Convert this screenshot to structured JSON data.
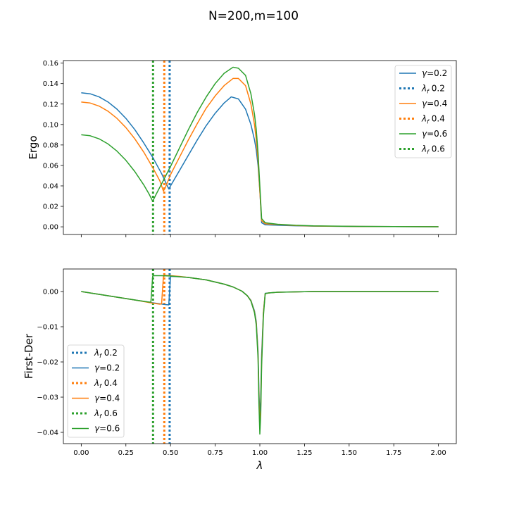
{
  "figure": {
    "title": "N=200,m=100"
  },
  "chart_data": [
    {
      "id": "ergo",
      "type": "line",
      "title": "",
      "xlabel": "",
      "ylabel": "Ergo",
      "xlim": [
        -0.1,
        2.1
      ],
      "ylim": [
        -0.0075,
        0.1625
      ],
      "xticks": [
        0.0,
        0.25,
        0.5,
        0.75,
        1.0,
        1.25,
        1.5,
        1.75,
        2.0
      ],
      "xtick_labels": [],
      "yticks": [
        0.0,
        0.02,
        0.04,
        0.06,
        0.08,
        0.1,
        0.12,
        0.14,
        0.16
      ],
      "ytick_labels": [
        "0.00",
        "0.02",
        "0.04",
        "0.06",
        "0.08",
        "0.10",
        "0.12",
        "0.14",
        "0.16"
      ],
      "grid": false,
      "legend_position": "upper right",
      "legend_order": [
        0,
        3,
        1,
        4,
        2,
        5
      ],
      "series": [
        {
          "name": "γ=0.2",
          "legend_main": "γ",
          "legend_sub": "",
          "legend_rest": "=0.2",
          "color": "#1f77b4",
          "style": "solid",
          "x": [
            0,
            0.05,
            0.1,
            0.15,
            0.2,
            0.25,
            0.3,
            0.35,
            0.4,
            0.45,
            0.49,
            0.5,
            0.55,
            0.6,
            0.65,
            0.7,
            0.75,
            0.8,
            0.84,
            0.88,
            0.92,
            0.95,
            0.97,
            0.98,
            0.99,
            1.0,
            1.01,
            1.03,
            1.1,
            1.2,
            1.3,
            1.5,
            1.75,
            2.0
          ],
          "y": [
            0.131,
            0.13,
            0.127,
            0.122,
            0.115,
            0.106,
            0.095,
            0.082,
            0.068,
            0.052,
            0.037,
            0.04,
            0.055,
            0.07,
            0.085,
            0.099,
            0.111,
            0.121,
            0.127,
            0.125,
            0.115,
            0.1,
            0.085,
            0.075,
            0.06,
            0.035,
            0.004,
            0.002,
            0.0015,
            0.001,
            0.0007,
            0.0004,
            0.0002,
            0.0001
          ]
        },
        {
          "name": "γ=0.4",
          "legend_main": "γ",
          "legend_sub": "",
          "legend_rest": "=0.4",
          "color": "#ff7f0e",
          "style": "solid",
          "x": [
            0,
            0.05,
            0.1,
            0.15,
            0.2,
            0.25,
            0.3,
            0.35,
            0.4,
            0.44,
            0.46,
            0.47,
            0.5,
            0.55,
            0.6,
            0.65,
            0.7,
            0.75,
            0.8,
            0.85,
            0.88,
            0.92,
            0.95,
            0.97,
            0.98,
            0.99,
            1.0,
            1.01,
            1.03,
            1.1,
            1.2,
            1.3,
            1.5,
            1.75,
            2.0
          ],
          "y": [
            0.122,
            0.121,
            0.118,
            0.113,
            0.106,
            0.097,
            0.086,
            0.073,
            0.058,
            0.045,
            0.035,
            0.038,
            0.051,
            0.068,
            0.085,
            0.101,
            0.116,
            0.128,
            0.138,
            0.145,
            0.145,
            0.138,
            0.12,
            0.1,
            0.085,
            0.065,
            0.035,
            0.006,
            0.003,
            0.0022,
            0.0013,
            0.0008,
            0.0004,
            0.0002,
            0.0001
          ]
        },
        {
          "name": "γ=0.6",
          "legend_main": "γ",
          "legend_sub": "",
          "legend_rest": "=0.6",
          "color": "#2ca02c",
          "style": "solid",
          "x": [
            0,
            0.05,
            0.1,
            0.15,
            0.2,
            0.25,
            0.3,
            0.35,
            0.38,
            0.4,
            0.42,
            0.45,
            0.5,
            0.55,
            0.6,
            0.65,
            0.7,
            0.75,
            0.8,
            0.85,
            0.88,
            0.92,
            0.95,
            0.97,
            0.98,
            0.99,
            1.0,
            1.01,
            1.03,
            1.1,
            1.2,
            1.3,
            1.5,
            1.75,
            2.0
          ],
          "y": [
            0.09,
            0.089,
            0.086,
            0.081,
            0.074,
            0.065,
            0.054,
            0.041,
            0.032,
            0.025,
            0.032,
            0.042,
            0.059,
            0.077,
            0.095,
            0.112,
            0.127,
            0.14,
            0.15,
            0.156,
            0.155,
            0.148,
            0.13,
            0.11,
            0.095,
            0.072,
            0.04,
            0.008,
            0.004,
            0.0025,
            0.0015,
            0.0009,
            0.0005,
            0.0002,
            0.0001
          ]
        },
        {
          "name": "λf 0.2",
          "legend_main": "λ",
          "legend_sub": "f",
          "legend_rest": " 0.2",
          "color": "#1f77b4",
          "style": "dotted",
          "vline": 0.495
        },
        {
          "name": "λf 0.4",
          "legend_main": "λ",
          "legend_sub": "f",
          "legend_rest": " 0.4",
          "color": "#ff7f0e",
          "style": "dotted",
          "vline": 0.465
        },
        {
          "name": "λf 0.6",
          "legend_main": "λ",
          "legend_sub": "f",
          "legend_rest": " 0.6",
          "color": "#2ca02c",
          "style": "dotted",
          "vline": 0.402
        }
      ]
    },
    {
      "id": "firstder",
      "type": "line",
      "title": "",
      "xlabel": "λ",
      "ylabel": "First-Der",
      "xlim": [
        -0.1,
        2.1
      ],
      "ylim": [
        -0.0432,
        0.0064
      ],
      "xticks": [
        0.0,
        0.25,
        0.5,
        0.75,
        1.0,
        1.25,
        1.5,
        1.75,
        2.0
      ],
      "xtick_labels": [
        "0.00",
        "0.25",
        "0.50",
        "0.75",
        "1.00",
        "1.25",
        "1.50",
        "1.75",
        "2.00"
      ],
      "yticks": [
        0.0,
        -0.01,
        -0.02,
        -0.03,
        -0.04
      ],
      "ytick_labels": [
        "0.00",
        "−0.01",
        "−0.02",
        "−0.03",
        "−0.04"
      ],
      "grid": false,
      "legend_position": "lower left",
      "legend_order": [
        3,
        0,
        4,
        1,
        5,
        2
      ],
      "series": [
        {
          "name": "γ=0.2",
          "legend_main": "γ",
          "legend_sub": "",
          "legend_rest": "=0.2",
          "color": "#1f77b4",
          "style": "solid",
          "x": [
            0,
            0.1,
            0.2,
            0.3,
            0.4,
            0.47,
            0.49,
            0.5,
            0.55,
            0.6,
            0.7,
            0.8,
            0.85,
            0.9,
            0.93,
            0.95,
            0.97,
            0.98,
            0.99,
            0.995,
            1.0,
            1.005,
            1.01,
            1.02,
            1.03,
            1.05,
            1.1,
            1.2,
            1.3,
            1.5,
            1.75,
            2.0
          ],
          "y": [
            0,
            -0.0008,
            -0.0016,
            -0.0024,
            -0.0032,
            -0.0037,
            -0.0038,
            0.0043,
            0.0042,
            0.004,
            0.0033,
            0.0021,
            0.0013,
            0.0001,
            -0.0012,
            -0.0025,
            -0.0055,
            -0.0085,
            -0.017,
            -0.028,
            -0.036,
            -0.03,
            -0.018,
            -0.006,
            -0.0005,
            -0.0004,
            -0.0002,
            -0.0001,
            0,
            0,
            0,
            0
          ]
        },
        {
          "name": "γ=0.4",
          "legend_main": "γ",
          "legend_sub": "",
          "legend_rest": "=0.4",
          "color": "#ff7f0e",
          "style": "solid",
          "x": [
            0,
            0.1,
            0.2,
            0.3,
            0.4,
            0.44,
            0.45,
            0.46,
            0.47,
            0.5,
            0.55,
            0.6,
            0.7,
            0.8,
            0.85,
            0.9,
            0.93,
            0.95,
            0.97,
            0.98,
            0.99,
            0.995,
            1.0,
            1.005,
            1.01,
            1.02,
            1.03,
            1.05,
            1.1,
            1.2,
            1.3,
            1.5,
            1.75,
            2.0
          ],
          "y": [
            0,
            -0.0008,
            -0.0016,
            -0.0024,
            -0.0033,
            -0.0036,
            -0.0035,
            0.0042,
            0.0046,
            0.0045,
            0.0043,
            0.004,
            0.0033,
            0.0021,
            0.0013,
            0.0001,
            -0.0012,
            -0.0026,
            -0.0058,
            -0.009,
            -0.018,
            -0.03,
            -0.039,
            -0.033,
            -0.02,
            -0.006,
            -0.0006,
            -0.0004,
            -0.0002,
            -0.0001,
            0,
            0,
            0,
            0
          ]
        },
        {
          "name": "γ=0.6",
          "legend_main": "γ",
          "legend_sub": "",
          "legend_rest": "=0.6",
          "color": "#2ca02c",
          "style": "solid",
          "x": [
            0,
            0.1,
            0.2,
            0.3,
            0.38,
            0.39,
            0.4,
            0.41,
            0.45,
            0.5,
            0.55,
            0.6,
            0.7,
            0.8,
            0.85,
            0.9,
            0.93,
            0.95,
            0.97,
            0.98,
            0.99,
            0.995,
            1.0,
            1.005,
            1.01,
            1.02,
            1.03,
            1.05,
            1.1,
            1.2,
            1.3,
            1.5,
            1.75,
            2.0
          ],
          "y": [
            0,
            -0.0008,
            -0.0016,
            -0.0024,
            -0.003,
            -0.003,
            0.0044,
            0.0045,
            0.0045,
            0.0044,
            0.0042,
            0.004,
            0.0033,
            0.0021,
            0.0013,
            0.0001,
            -0.0012,
            -0.0027,
            -0.006,
            -0.0095,
            -0.019,
            -0.032,
            -0.0405,
            -0.035,
            -0.021,
            -0.007,
            -0.0006,
            -0.0004,
            -0.0002,
            -0.0001,
            0,
            0,
            0,
            0
          ]
        },
        {
          "name": "λf 0.2",
          "legend_main": "λ",
          "legend_sub": "f",
          "legend_rest": " 0.2",
          "color": "#1f77b4",
          "style": "dotted",
          "vline": 0.495
        },
        {
          "name": "λf 0.4",
          "legend_main": "λ",
          "legend_sub": "f",
          "legend_rest": " 0.4",
          "color": "#ff7f0e",
          "style": "dotted",
          "vline": 0.465
        },
        {
          "name": "λf 0.6",
          "legend_main": "λ",
          "legend_sub": "f",
          "legend_rest": " 0.6",
          "color": "#2ca02c",
          "style": "dotted",
          "vline": 0.402
        }
      ]
    }
  ]
}
